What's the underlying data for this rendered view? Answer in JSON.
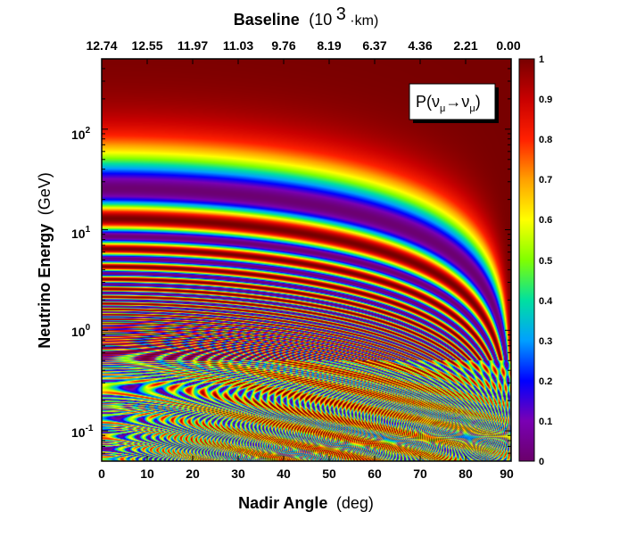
{
  "chart_data": {
    "type": "heatmap",
    "title": "",
    "xlabel": "Nadir Angle",
    "xlabel_unit": "(deg)",
    "ylabel": "Neutrino Energy",
    "ylabel_unit": "(GeV)",
    "top_axis_label": "Baseline",
    "top_axis_unit_prefix": "(10",
    "top_axis_unit_exp": "3",
    "top_axis_unit_suffix": "·km)",
    "legend_label": {
      "prefix": "P(ν",
      "sub1": "μ",
      "arrow": "→ν",
      "sub2": "μ",
      "suffix": ")"
    },
    "xlim": [
      0,
      90
    ],
    "ylim": [
      0.05,
      500
    ],
    "y_scale": "log",
    "x_ticks": [
      "0",
      "10",
      "20",
      "30",
      "40",
      "50",
      "60",
      "70",
      "80",
      "90"
    ],
    "x_tick_values": [
      0,
      10,
      20,
      30,
      40,
      50,
      60,
      70,
      80,
      90
    ],
    "top_ticks": [
      "12.74",
      "12.55",
      "11.97",
      "11.03",
      "9.76",
      "8.19",
      "6.37",
      "4.36",
      "2.21",
      "0.00"
    ],
    "y_ticks": [
      {
        "value": 0.1,
        "base": "10",
        "exp": "-1"
      },
      {
        "value": 1,
        "base": "10",
        "exp": "0"
      },
      {
        "value": 10,
        "base": "10",
        "exp": "1"
      },
      {
        "value": 100,
        "base": "10",
        "exp": "2"
      }
    ],
    "colorbar": {
      "range": [
        0,
        1
      ],
      "ticks": [
        "0",
        "0.1",
        "0.2",
        "0.3",
        "0.4",
        "0.5",
        "0.6",
        "0.7",
        "0.8",
        "0.9",
        "1"
      ],
      "colors": [
        "#6a006a",
        "#7a00b4",
        "#0000ff",
        "#00a0ff",
        "#00e0a0",
        "#80ff00",
        "#ffff00",
        "#ffa000",
        "#ff2000",
        "#c80000",
        "#780000"
      ]
    },
    "quantity": "muon-neutrino survival probability vs nadir angle and energy"
  }
}
